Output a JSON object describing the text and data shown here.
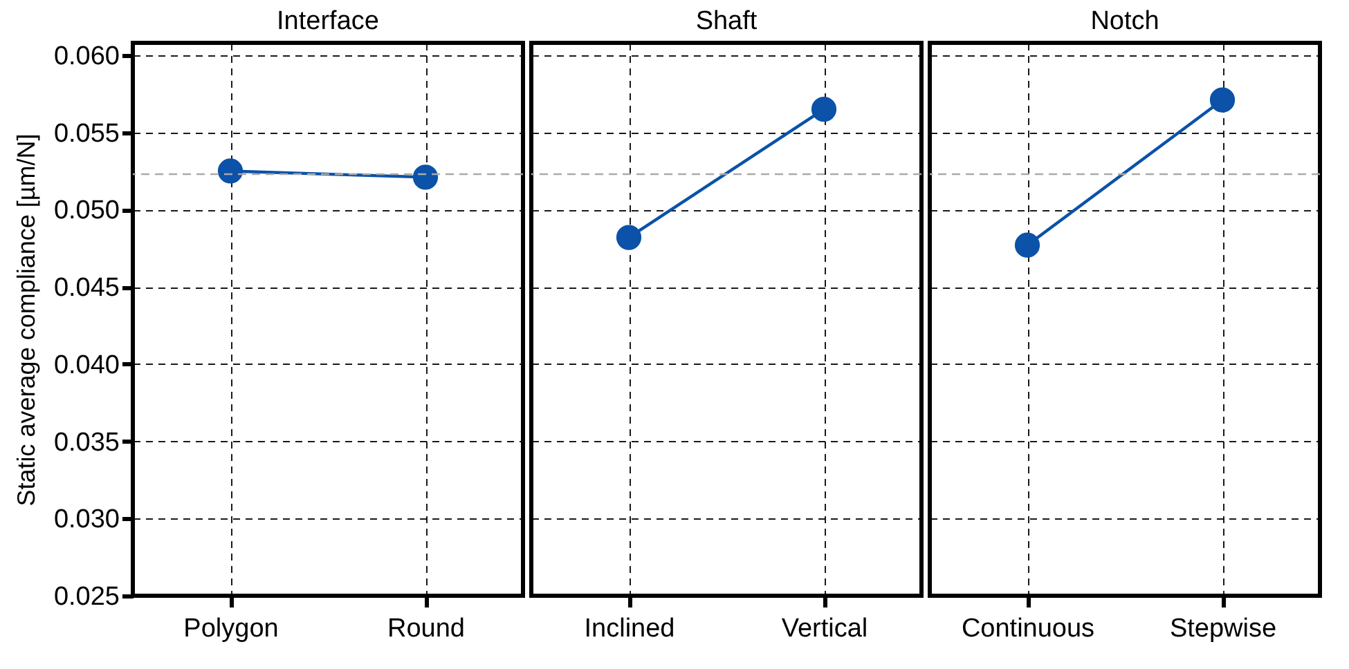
{
  "chart_data": [
    {
      "type": "line",
      "title": "Interface",
      "ylabel": "Static average compliance [µm/N]",
      "categories": [
        "Polygon",
        "Round"
      ],
      "series": [
        {
          "color": "#0b52a8",
          "values": [
            0.0525,
            0.0521
          ]
        }
      ],
      "ylim": [
        0.025,
        0.0608
      ],
      "yticks": [
        0.025,
        {
          "value": 0.03,
          "label": "0.030"
        },
        0.035,
        {
          "value": 0.04,
          "label": "0.040"
        },
        0.045,
        {
          "value": 0.05,
          "label": "0.050"
        },
        0.055,
        {
          "value": 0.06,
          "label": "0.060"
        }
      ],
      "grid": true,
      "marker": "circle",
      "ref_lines": [
        {
          "axis": "y",
          "value": 0.0523,
          "color": "#aaaaaa",
          "line_style": "dashed"
        }
      ]
    },
    {
      "type": "line",
      "title": "Shaft",
      "categories": [
        "Inclined",
        "Vertical"
      ],
      "series": [
        {
          "color": "#0b52a8",
          "values": [
            0.0482,
            0.0565
          ]
        }
      ],
      "ylim": [
        0.025,
        0.0608
      ],
      "yticks": [
        0.025,
        0.03,
        0.035,
        0.04,
        0.045,
        0.05,
        0.055,
        0.06
      ],
      "tick_labels": "x",
      "grid": true,
      "marker": "circle",
      "ref_lines": [
        {
          "axis": "y",
          "value": 0.0523,
          "color": "#aaaaaa",
          "line_style": "dashed"
        }
      ]
    },
    {
      "type": "line",
      "title": "Notch",
      "categories": [
        "Continuous",
        "Stepwise"
      ],
      "series": [
        {
          "color": "#0b52a8",
          "values": [
            0.0477,
            0.0571
          ]
        }
      ],
      "ylim": [
        0.025,
        0.0608
      ],
      "yticks": [
        0.025,
        0.03,
        0.035,
        0.04,
        0.045,
        0.05,
        0.055,
        0.06
      ],
      "tick_labels": "x",
      "grid": true,
      "marker": "circle",
      "ref_lines": [
        {
          "axis": "y",
          "value": 0.0523,
          "color": "#aaaaaa",
          "line_style": "dashed"
        }
      ]
    }
  ]
}
